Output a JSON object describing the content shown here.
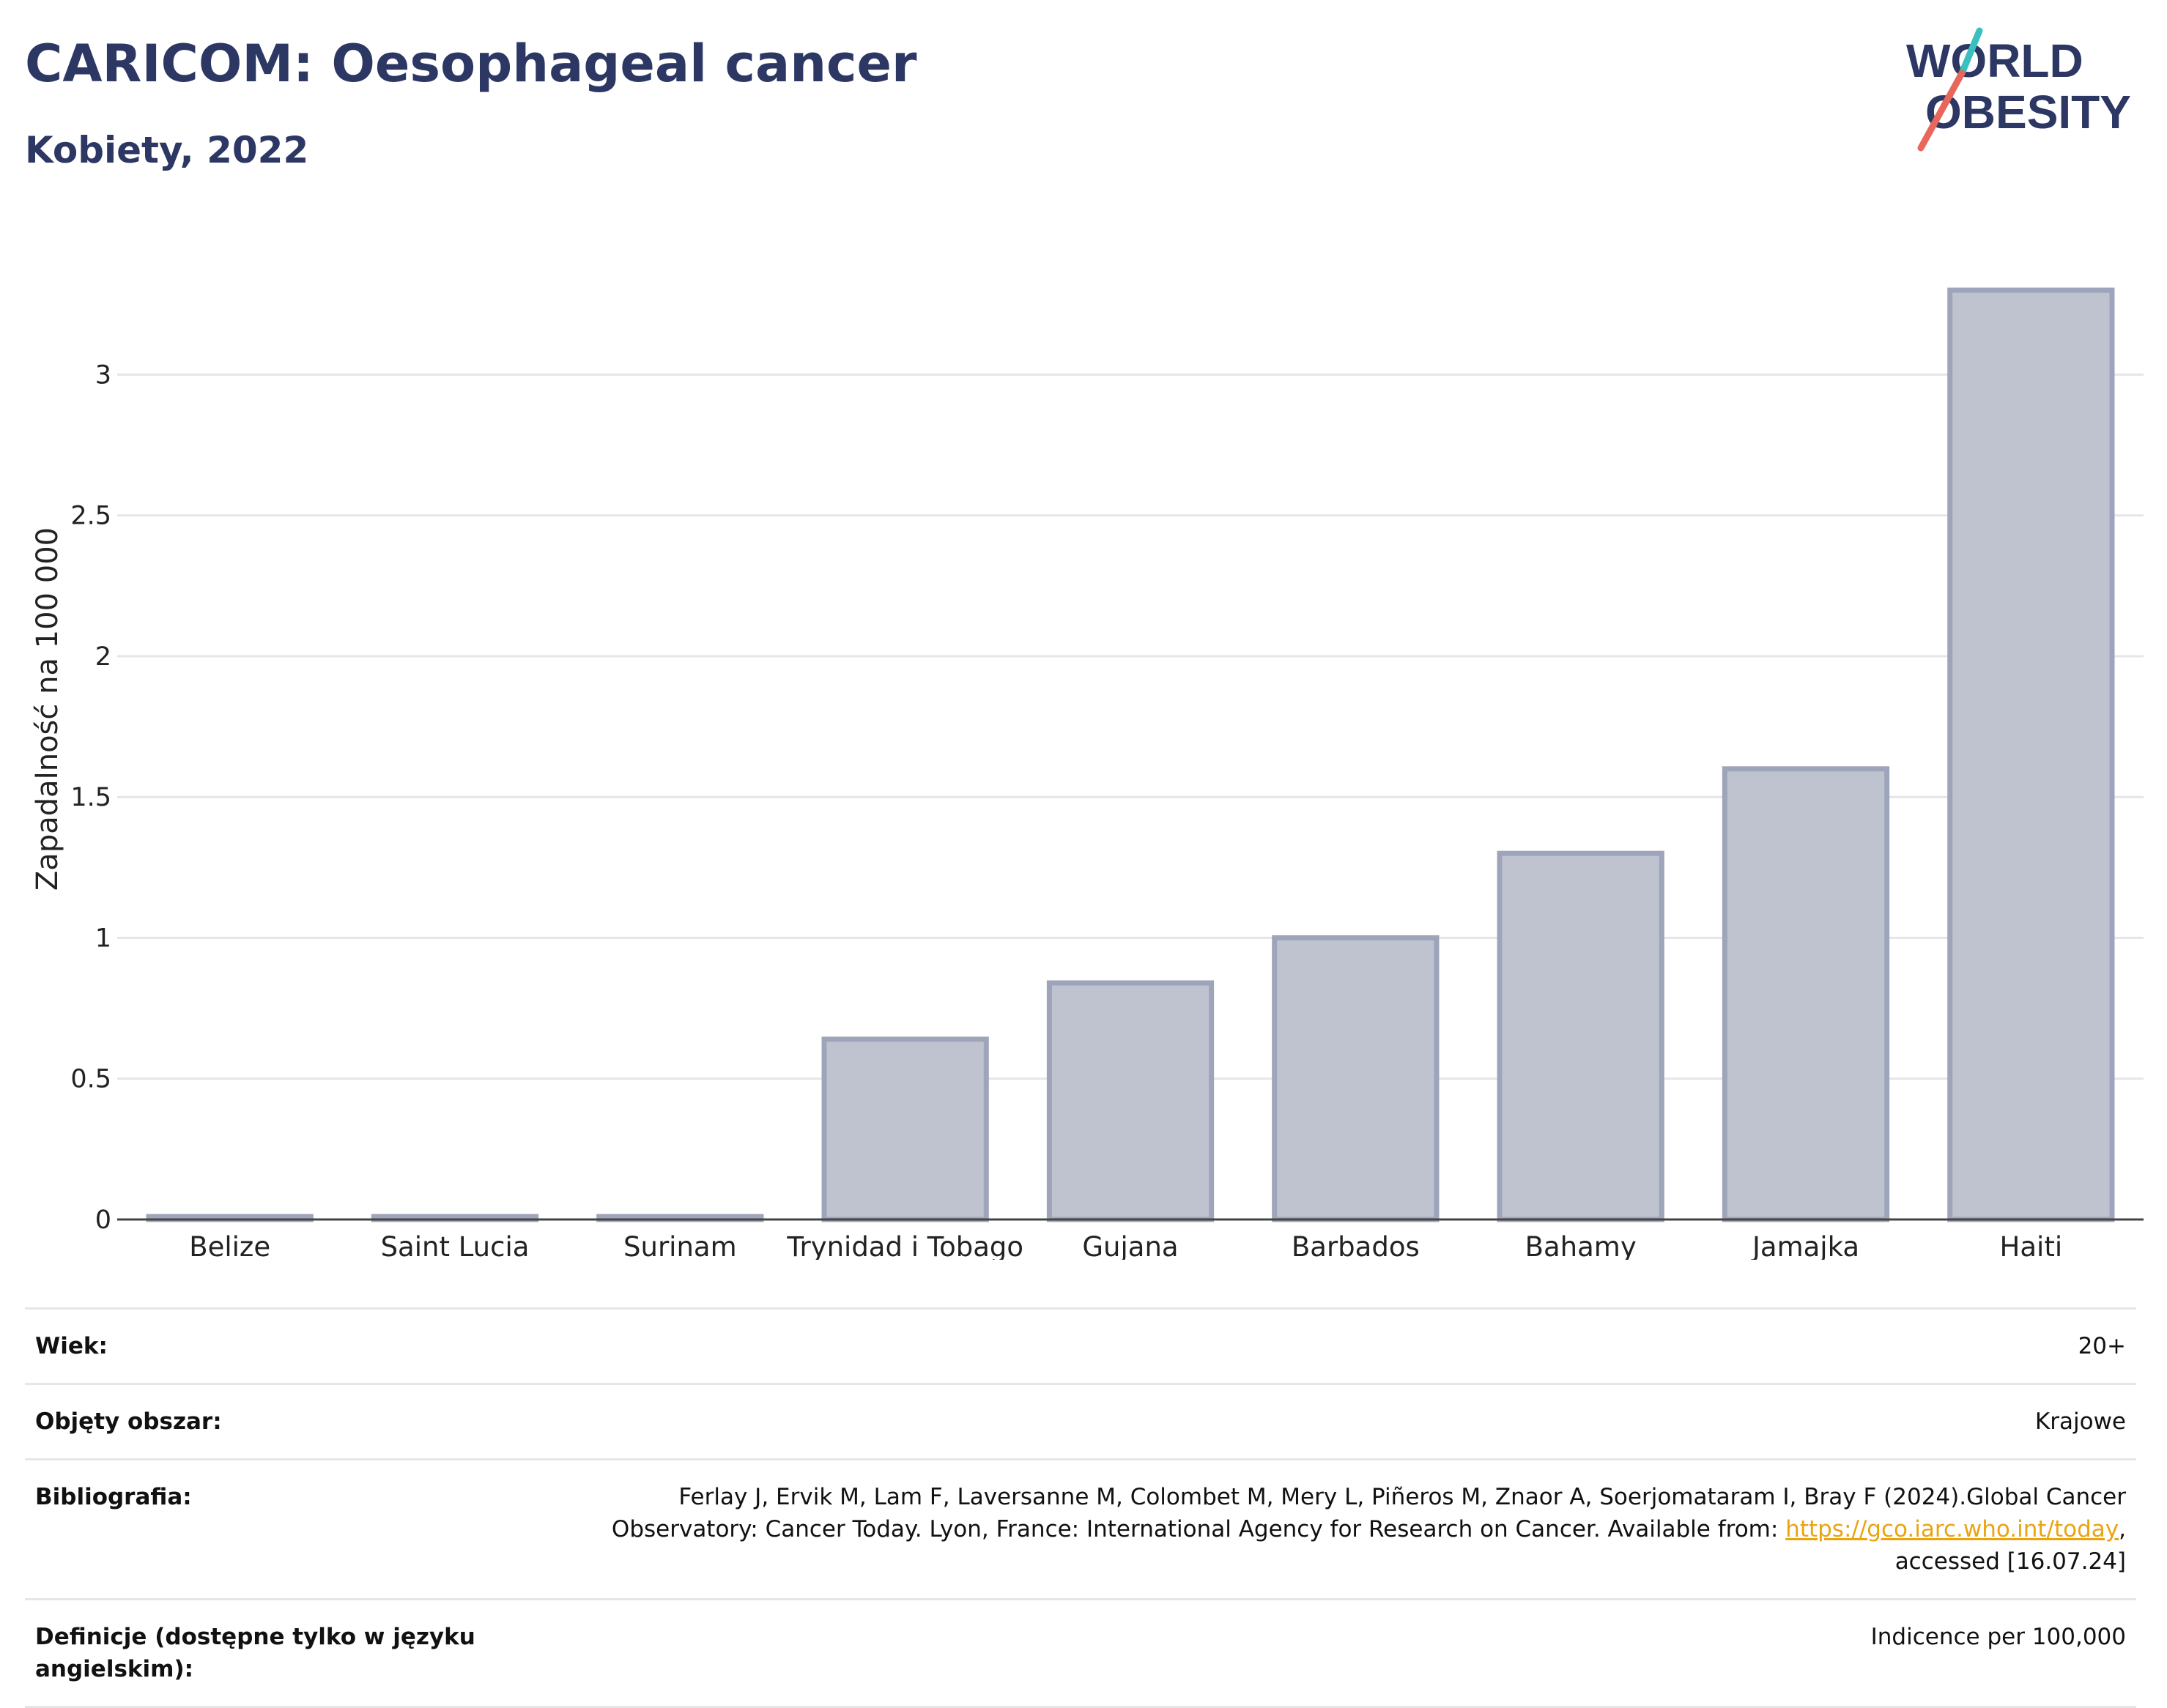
{
  "header": {
    "title": "CARICOM: Oesophageal cancer",
    "subtitle": "Kobiety, 2022",
    "logo_line1": "WORLD",
    "logo_line2": "OBESITY"
  },
  "colors": {
    "title": "#2c3764",
    "bar_fill": "#bfc3d0",
    "bar_stroke": "#9ea4b9",
    "grid": "#e6e6ea",
    "axis": "#444444",
    "link": "#e9a410",
    "logo_slash_teal": "#3bbfbf",
    "logo_slash_red": "#e8665a"
  },
  "chart_data": {
    "type": "bar",
    "title": "CARICOM: Oesophageal cancer",
    "subtitle": "Kobiety, 2022",
    "xlabel": "",
    "ylabel": "Zapadalność na 100 000",
    "categories": [
      "Belize",
      "Saint Lucia",
      "Surinam",
      "Trynidad i Tobago",
      "Gujana",
      "Barbados",
      "Bahamy",
      "Jamajka",
      "Haiti"
    ],
    "values": [
      0,
      0,
      0,
      0.64,
      0.84,
      1.0,
      1.3,
      1.6,
      3.3
    ],
    "ylim": [
      0,
      3.55
    ],
    "yticks": [
      0,
      0.5,
      1,
      1.5,
      2,
      2.5,
      3
    ],
    "ytick_labels": [
      "0",
      "0.5",
      "1",
      "1.5",
      "2",
      "2.5",
      "3"
    ],
    "grid": true,
    "legend": "none"
  },
  "meta": {
    "rows": [
      {
        "key": "Wiek:",
        "value": "20+"
      },
      {
        "key": "Objęty obszar:",
        "value": "Krajowe"
      },
      {
        "key": "Bibliografia:",
        "value_prefix": "Ferlay J, Ervik M, Lam F, Laversanne M, Colombet M, Mery L, Piñeros M, Znaor A, Soerjomataram I, Bray F (2024).Global Cancer Observatory: Cancer Today. Lyon, France: International Agency for Research on Cancer. Available from: ",
        "link_text": "https://gco.iarc.who.int/today",
        "value_suffix": ", accessed [16.07.24]"
      },
      {
        "key": "Definicje (dostępne tylko w języku angielskim):",
        "value": "Indicence per 100,000"
      }
    ]
  }
}
